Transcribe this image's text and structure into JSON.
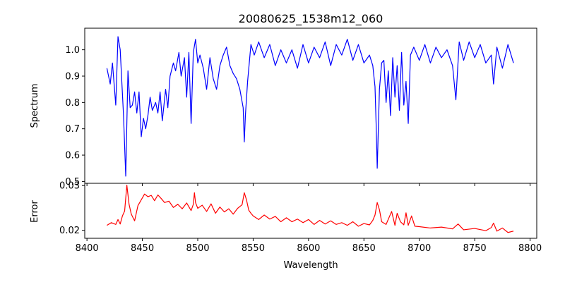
{
  "chart_data": [
    {
      "type": "line",
      "title": "20080625_1538m12_060",
      "xlabel": "",
      "ylabel": "Spectrum",
      "xlim": [
        8398,
        8806
      ],
      "ylim": [
        0.493,
        1.082
      ],
      "xticks": [
        8400,
        8450,
        8500,
        8550,
        8600,
        8650,
        8700,
        8750,
        8800
      ],
      "yticks": [
        0.5,
        0.6,
        0.7,
        0.8,
        0.9,
        1.0
      ],
      "ytick_labels": [
        "0.5",
        "0.6",
        "0.7",
        "0.8",
        "0.9",
        "1.0"
      ],
      "grid": false,
      "series": [
        {
          "color": "#0000ff",
          "x": [
            8418,
            8421,
            8423,
            8426,
            8428,
            8430,
            8433,
            8435,
            8437,
            8439,
            8441,
            8443,
            8445,
            8447,
            8449,
            8451,
            8453,
            8455,
            8457,
            8459,
            8462,
            8464,
            8466,
            8468,
            8471,
            8473,
            8475,
            8478,
            8480,
            8483,
            8485,
            8488,
            8490,
            8492,
            8494,
            8496,
            8498,
            8500,
            8502,
            8505,
            8508,
            8511,
            8514,
            8517,
            8520,
            8523,
            8526,
            8529,
            8532,
            8535,
            8538,
            8541,
            8542,
            8543,
            8545,
            8548,
            8551,
            8555,
            8560,
            8565,
            8570,
            8575,
            8580,
            8585,
            8590,
            8595,
            8600,
            8605,
            8610,
            8615,
            8620,
            8625,
            8630,
            8635,
            8640,
            8645,
            8650,
            8655,
            8658,
            8660,
            8661,
            8662,
            8663,
            8664,
            8666,
            8668,
            8670,
            8672,
            8674,
            8676,
            8678,
            8680,
            8682,
            8684,
            8686,
            8688,
            8690,
            8692,
            8695,
            8700,
            8705,
            8710,
            8715,
            8720,
            8725,
            8730,
            8733,
            8736,
            8740,
            8745,
            8750,
            8755,
            8760,
            8765,
            8767,
            8770,
            8775,
            8780,
            8785
          ],
          "y": [
            0.93,
            0.87,
            0.95,
            0.79,
            1.05,
            1.0,
            0.75,
            0.52,
            0.92,
            0.78,
            0.79,
            0.84,
            0.76,
            0.84,
            0.67,
            0.74,
            0.7,
            0.75,
            0.82,
            0.77,
            0.8,
            0.76,
            0.84,
            0.73,
            0.85,
            0.78,
            0.9,
            0.95,
            0.92,
            0.99,
            0.9,
            0.97,
            0.82,
            0.99,
            0.72,
            0.99,
            1.04,
            0.95,
            0.98,
            0.93,
            0.85,
            0.97,
            0.89,
            0.85,
            0.94,
            0.98,
            1.01,
            0.94,
            0.91,
            0.89,
            0.85,
            0.78,
            0.65,
            0.75,
            0.88,
            1.02,
            0.98,
            1.03,
            0.97,
            1.02,
            0.94,
            1.0,
            0.95,
            1.0,
            0.93,
            1.02,
            0.95,
            1.01,
            0.97,
            1.03,
            0.94,
            1.02,
            0.98,
            1.04,
            0.96,
            1.02,
            0.95,
            0.98,
            0.94,
            0.86,
            0.72,
            0.55,
            0.7,
            0.85,
            0.95,
            0.96,
            0.8,
            0.92,
            0.75,
            0.97,
            0.82,
            0.94,
            0.77,
            0.99,
            0.79,
            0.88,
            0.72,
            0.98,
            1.01,
            0.96,
            1.02,
            0.95,
            1.01,
            0.97,
            1.0,
            0.94,
            0.81,
            1.03,
            0.96,
            1.03,
            0.97,
            1.02,
            0.95,
            0.98,
            0.87,
            1.01,
            0.93,
            1.02,
            0.95
          ]
        }
      ]
    },
    {
      "type": "line",
      "title": "",
      "xlabel": "Wavelength",
      "ylabel": "Error",
      "xlim": [
        8398,
        8806
      ],
      "ylim": [
        0.0182,
        0.0305
      ],
      "xticks": [
        8400,
        8450,
        8500,
        8550,
        8600,
        8650,
        8700,
        8750,
        8800
      ],
      "yticks": [
        0.02,
        0.03
      ],
      "ytick_labels": [
        "0.02",
        "0.03"
      ],
      "grid": false,
      "series": [
        {
          "color": "#ff0000",
          "x": [
            8418,
            8422,
            8426,
            8428,
            8430,
            8432,
            8434,
            8436,
            8438,
            8440,
            8443,
            8446,
            8449,
            8452,
            8455,
            8458,
            8461,
            8464,
            8467,
            8470,
            8474,
            8478,
            8482,
            8486,
            8490,
            8494,
            8496,
            8497,
            8498,
            8500,
            8504,
            8508,
            8512,
            8516,
            8520,
            8524,
            8528,
            8532,
            8536,
            8540,
            8542,
            8544,
            8546,
            8548,
            8550,
            8555,
            8560,
            8565,
            8570,
            8575,
            8580,
            8585,
            8590,
            8595,
            8600,
            8605,
            8610,
            8615,
            8620,
            8625,
            8630,
            8635,
            8640,
            8645,
            8650,
            8655,
            8658,
            8660,
            8662,
            8664,
            8666,
            8670,
            8675,
            8678,
            8680,
            8683,
            8686,
            8688,
            8690,
            8693,
            8696,
            8700,
            8710,
            8720,
            8730,
            8735,
            8740,
            8750,
            8760,
            8765,
            8767,
            8770,
            8775,
            8780,
            8785
          ],
          "y": [
            0.0211,
            0.0217,
            0.0213,
            0.0224,
            0.0214,
            0.0232,
            0.0243,
            0.0301,
            0.0258,
            0.0236,
            0.0221,
            0.0255,
            0.0268,
            0.0281,
            0.0275,
            0.0278,
            0.0266,
            0.0279,
            0.0271,
            0.0262,
            0.0265,
            0.0251,
            0.0258,
            0.0248,
            0.0261,
            0.0244,
            0.0258,
            0.0284,
            0.0262,
            0.0249,
            0.0256,
            0.0242,
            0.0259,
            0.0238,
            0.0252,
            0.0241,
            0.0248,
            0.0236,
            0.0249,
            0.0257,
            0.0284,
            0.0268,
            0.0245,
            0.0238,
            0.0232,
            0.0224,
            0.0234,
            0.0225,
            0.0231,
            0.0219,
            0.0228,
            0.0219,
            0.0225,
            0.0217,
            0.0224,
            0.0213,
            0.0222,
            0.0214,
            0.0221,
            0.0213,
            0.0217,
            0.0211,
            0.0219,
            0.0209,
            0.0215,
            0.0212,
            0.0222,
            0.0234,
            0.0262,
            0.0246,
            0.0219,
            0.0213,
            0.0242,
            0.0211,
            0.0238,
            0.0219,
            0.0212,
            0.0239,
            0.0211,
            0.0232,
            0.0209,
            0.0208,
            0.0205,
            0.0207,
            0.0203,
            0.0214,
            0.0201,
            0.0204,
            0.0199,
            0.0206,
            0.0216,
            0.0198,
            0.0205,
            0.0195,
            0.0198
          ]
        }
      ]
    }
  ]
}
